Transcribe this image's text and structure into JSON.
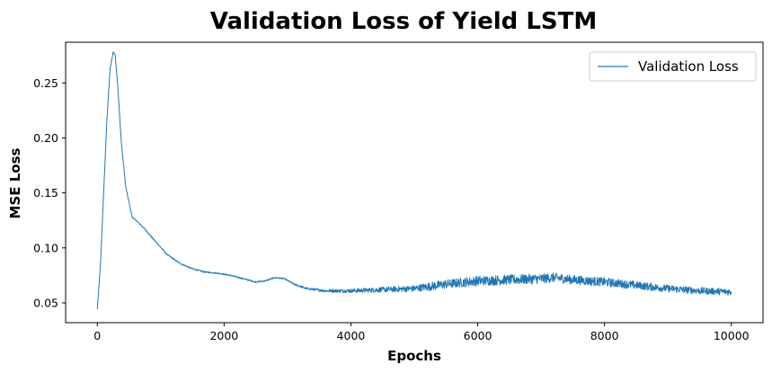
{
  "chart_data": {
    "type": "line",
    "title": "Validation Loss of Yield LSTM",
    "xlabel": "Epochs",
    "ylabel": "MSE Loss",
    "xlim": [
      -500,
      10500
    ],
    "ylim": [
      0.032,
      0.287
    ],
    "xticks": [
      0,
      2000,
      4000,
      6000,
      8000,
      10000
    ],
    "yticks": [
      0.05,
      0.1,
      0.15,
      0.2,
      0.25
    ],
    "ytick_labels": [
      "0.05",
      "0.10",
      "0.15",
      "0.20",
      "0.25"
    ],
    "grid": false,
    "legend_position": "top-right",
    "series": [
      {
        "name": "Validation Loss",
        "color": "#1f77b4",
        "key_points": {
          "x": [
            0,
            50,
            100,
            150,
            200,
            250,
            280,
            320,
            380,
            450,
            550,
            650,
            750,
            900,
            1100,
            1300,
            1500,
            1700,
            1900,
            2100,
            2300,
            2500,
            2650,
            2800,
            2950,
            3100,
            3300,
            3600,
            4000,
            4500,
            5000,
            5500,
            6000,
            6500,
            7000,
            7200,
            7500,
            8000,
            8500,
            9000,
            9500,
            10000
          ],
          "y": [
            0.044,
            0.085,
            0.15,
            0.215,
            0.262,
            0.278,
            0.276,
            0.25,
            0.195,
            0.155,
            0.128,
            0.123,
            0.117,
            0.107,
            0.094,
            0.086,
            0.081,
            0.078,
            0.077,
            0.075,
            0.072,
            0.069,
            0.07,
            0.073,
            0.072,
            0.067,
            0.063,
            0.061,
            0.061,
            0.062,
            0.063,
            0.067,
            0.07,
            0.071,
            0.072,
            0.073,
            0.071,
            0.069,
            0.066,
            0.063,
            0.061,
            0.06
          ]
        },
        "noise_amplitude": {
          "x": [
            0,
            3000,
            3500,
            4000,
            5000,
            5300,
            6000,
            7000,
            8000,
            9000,
            10000
          ],
          "a": [
            0.0006,
            0.0006,
            0.0012,
            0.0018,
            0.003,
            0.004,
            0.0045,
            0.0045,
            0.004,
            0.0033,
            0.003
          ]
        }
      }
    ]
  }
}
